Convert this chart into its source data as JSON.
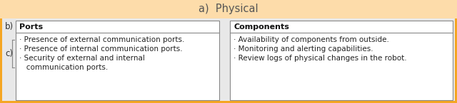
{
  "title": "a)  Physical",
  "title_bg": "#FDDCAA",
  "outer_border": "#F5A623",
  "content_bg": "#E8E8E8",
  "box_bg": "#FFFFFF",
  "box_border": "#888888",
  "left_header": "Ports",
  "right_header": "Components",
  "left_items": [
    "· Presence of external communication ports.",
    "· Presence of internal communication ports.",
    "· Security of external and internal",
    "   communication ports."
  ],
  "right_items": [
    "· Availability of components from outside.",
    "· Monitoring and alerting capabilities.",
    "· Review logs of physical changes in the robot."
  ],
  "label_b": "b)",
  "label_c": "c)",
  "font_size_title": 10.5,
  "font_size_header": 8.0,
  "font_size_items": 7.5,
  "font_size_labels": 8.5
}
